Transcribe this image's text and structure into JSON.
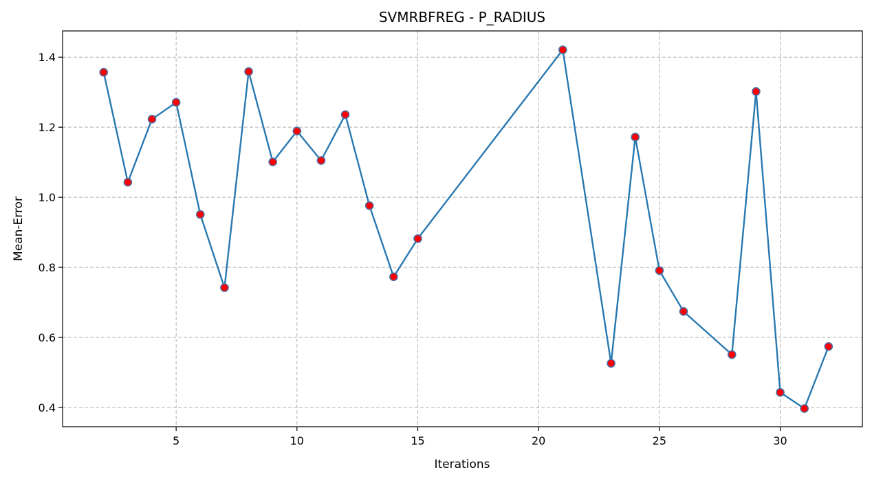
{
  "chart_data": {
    "type": "line",
    "title": "SVMRBFREG - P_RADIUS",
    "xlabel": "Iterations",
    "ylabel": "Mean-Error",
    "xlim": [
      0.3,
      33.4
    ],
    "ylim": [
      0.345,
      1.475
    ],
    "xticks": [
      5,
      10,
      15,
      20,
      25,
      30
    ],
    "yticks": [
      0.4,
      0.6,
      0.8,
      1.0,
      1.2,
      1.4
    ],
    "ytick_labels": [
      "0.4",
      "0.6",
      "0.8",
      "1.0",
      "1.2",
      "1.4"
    ],
    "grid": true,
    "line_color": "#2878b0",
    "marker_fill": "#ff0000",
    "marker_edge": "#4a6fa5",
    "series": [
      {
        "x": [
          2,
          3,
          4,
          5,
          6,
          7,
          8,
          9,
          10,
          11,
          12,
          13,
          14,
          15,
          21,
          23,
          24,
          25,
          26,
          28,
          29,
          30,
          31,
          32
        ],
        "y": [
          1.357,
          1.043,
          1.223,
          1.271,
          0.951,
          0.742,
          1.359,
          1.101,
          1.189,
          1.105,
          1.236,
          0.976,
          0.773,
          0.882,
          1.421,
          0.526,
          1.172,
          0.791,
          0.674,
          0.551,
          1.302,
          0.443,
          0.397,
          0.574
        ]
      }
    ]
  }
}
